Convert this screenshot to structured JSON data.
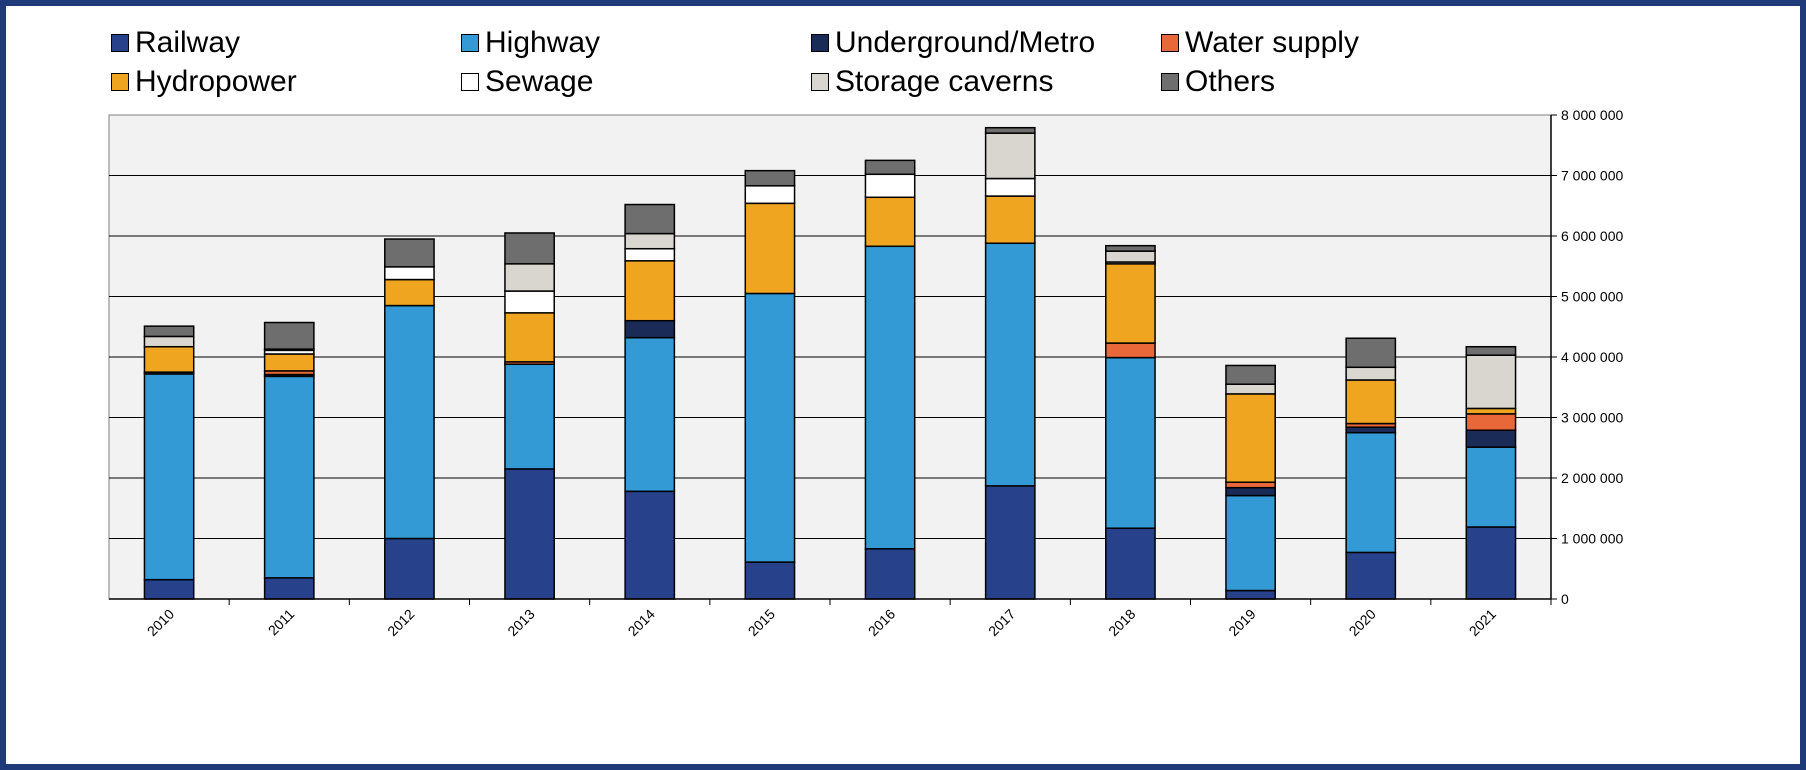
{
  "chart_data": {
    "type": "bar",
    "stacked": true,
    "categories": [
      "2010",
      "2011",
      "2012",
      "2013",
      "2014",
      "2015",
      "2016",
      "2017",
      "2018",
      "2019",
      "2020",
      "2021"
    ],
    "ylim": [
      0,
      8000000
    ],
    "yticks": [
      0,
      1000000,
      2000000,
      3000000,
      4000000,
      5000000,
      6000000,
      7000000,
      8000000
    ],
    "ytick_labels": [
      "0",
      "1 000 000",
      "2 000 000",
      "3 000 000",
      "4 000 000",
      "5 000 000",
      "6 000 000",
      "7 000 000",
      "8 000 000"
    ],
    "y_axis_side": "right",
    "grid": true,
    "legend_position": "top",
    "series": [
      {
        "name": "Railway",
        "color": "#27428a",
        "values": [
          320000,
          350000,
          1000000,
          2150000,
          1780000,
          610000,
          830000,
          1870000,
          1170000,
          140000,
          770000,
          1190000
        ]
      },
      {
        "name": "Highway",
        "color": "#339ad6",
        "values": [
          3400000,
          3330000,
          3850000,
          1730000,
          2540000,
          4440000,
          5000000,
          4010000,
          2820000,
          1570000,
          1980000,
          1320000
        ]
      },
      {
        "name": "Underground/Metro",
        "color": "#1a2b57",
        "values": [
          30000,
          30000,
          0,
          0,
          280000,
          0,
          0,
          0,
          0,
          130000,
          90000,
          280000
        ]
      },
      {
        "name": "Water supply",
        "color": "#e8683a",
        "values": [
          0,
          60000,
          0,
          40000,
          0,
          0,
          0,
          0,
          240000,
          90000,
          60000,
          270000
        ]
      },
      {
        "name": "Hydropower",
        "color": "#f0a521",
        "values": [
          420000,
          280000,
          430000,
          810000,
          990000,
          1490000,
          810000,
          780000,
          1310000,
          1460000,
          720000,
          90000
        ]
      },
      {
        "name": "Sewage",
        "color": "#ffffff",
        "values": [
          0,
          60000,
          210000,
          360000,
          200000,
          290000,
          380000,
          290000,
          30000,
          0,
          0,
          0
        ]
      },
      {
        "name": "Storage caverns",
        "color": "#d9d5cf",
        "values": [
          170000,
          20000,
          0,
          450000,
          250000,
          0,
          0,
          750000,
          180000,
          160000,
          210000,
          880000
        ]
      },
      {
        "name": "Others",
        "color": "#6e6e6e",
        "values": [
          170000,
          440000,
          460000,
          510000,
          480000,
          250000,
          230000,
          90000,
          90000,
          310000,
          480000,
          140000
        ]
      }
    ]
  }
}
